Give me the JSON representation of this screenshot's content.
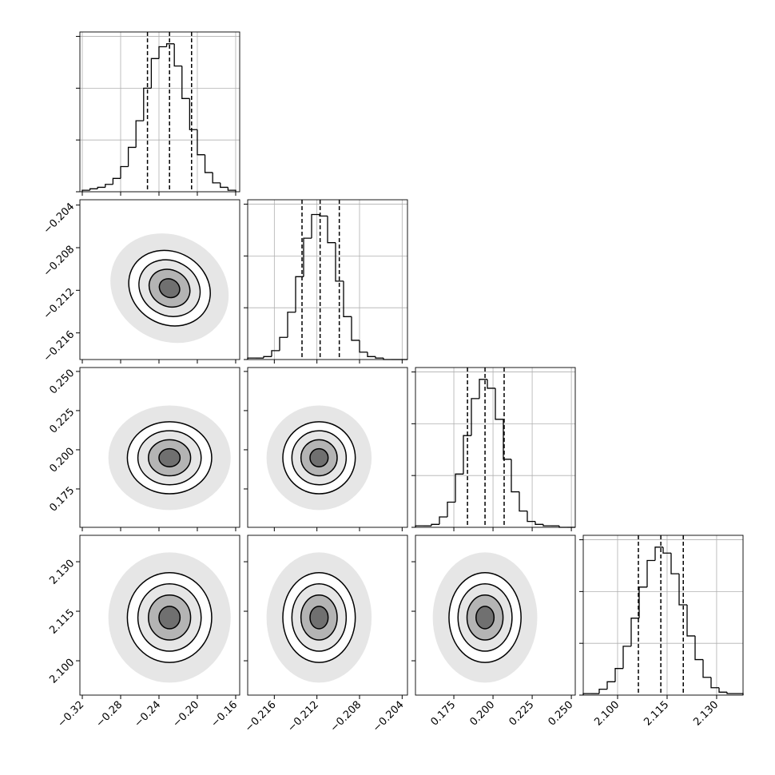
{
  "chart_data": {
    "type": "corner",
    "grid": true,
    "color": "#000000",
    "count_ylim": [
      0,
      108
    ],
    "count_yticks": [
      0,
      35,
      70,
      105
    ],
    "parameters": [
      {
        "xlim": [
          -0.3225,
          -0.1558
        ],
        "ticks": [
          {
            "value": -0.32,
            "label": "−0.32"
          },
          {
            "value": -0.28,
            "label": "−0.28"
          },
          {
            "value": -0.24,
            "label": "−0.24"
          },
          {
            "value": -0.2,
            "label": "−0.20"
          },
          {
            "value": -0.16,
            "label": "−0.16"
          }
        ],
        "bins": [
          -0.32,
          -0.312,
          -0.304,
          -0.296,
          -0.288,
          -0.28,
          -0.272,
          -0.264,
          -0.256,
          -0.248,
          -0.24,
          -0.232,
          -0.224,
          -0.216,
          -0.208,
          -0.2,
          -0.192,
          -0.184,
          -0.176,
          -0.168,
          -0.16
        ],
        "counts": [
          1,
          2,
          3,
          5,
          9,
          17,
          30,
          48,
          70,
          90,
          98,
          100,
          85,
          63,
          42,
          25,
          13,
          6,
          3,
          1
        ],
        "quantiles": [
          -0.252,
          -0.229,
          -0.206
        ]
      },
      {
        "xlim": [
          -0.2185,
          -0.2035
        ],
        "ticks": [
          {
            "value": -0.216,
            "label": "−0.216"
          },
          {
            "value": -0.212,
            "label": "−0.212"
          },
          {
            "value": -0.208,
            "label": "−0.208"
          },
          {
            "value": -0.204,
            "label": "−0.204"
          }
        ],
        "bins": [
          -0.2185,
          -0.21775,
          -0.217,
          -0.21625,
          -0.2155,
          -0.21475,
          -0.214,
          -0.21325,
          -0.2125,
          -0.21175,
          -0.211,
          -0.21025,
          -0.2095,
          -0.20875,
          -0.208,
          -0.20725,
          -0.2065,
          -0.20575,
          -0.205,
          -0.20425,
          -0.2035
        ],
        "counts": [
          1,
          1,
          2,
          6,
          15,
          32,
          56,
          82,
          98,
          97,
          79,
          53,
          29,
          13,
          5,
          2,
          1,
          0,
          0,
          0
        ],
        "quantiles": [
          -0.2134,
          -0.2117,
          -0.2099
        ]
      },
      {
        "xlim": [
          0.1505,
          0.2525
        ],
        "ticks": [
          0.175,
          {
            "value": 0.2,
            "label": "0.200"
          },
          0.225,
          {
            "value": 0.25,
            "label": "0.250"
          }
        ],
        "bins": [
          0.1505,
          0.1556,
          0.1607,
          0.1658,
          0.1709,
          0.176,
          0.1811,
          0.1862,
          0.1913,
          0.1964,
          0.2015,
          0.2066,
          0.2117,
          0.2168,
          0.2219,
          0.227,
          0.2321,
          0.2372,
          0.2423,
          0.2474,
          0.2525
        ],
        "counts": [
          1,
          1,
          2,
          7,
          17,
          36,
          62,
          87,
          100,
          94,
          73,
          46,
          24,
          11,
          4,
          2,
          1,
          1,
          0,
          0
        ],
        "quantiles": [
          0.1837,
          0.1949,
          0.2071
        ]
      },
      {
        "xlim": [
          2.0896,
          2.138
        ],
        "ticks": [
          {
            "value": 2.1,
            "label": "2.100"
          },
          2.115,
          {
            "value": 2.13,
            "label": "2.130"
          }
        ],
        "bins": [
          2.0896,
          2.09202,
          2.09444,
          2.09686,
          2.09928,
          2.1017,
          2.10412,
          2.10654,
          2.10896,
          2.11138,
          2.1138,
          2.11622,
          2.11864,
          2.12106,
          2.12348,
          2.1259,
          2.12832,
          2.13074,
          2.13316,
          2.13558,
          2.138
        ],
        "counts": [
          1,
          1,
          4,
          9,
          18,
          33,
          52,
          73,
          91,
          100,
          96,
          82,
          61,
          40,
          24,
          12,
          5,
          2,
          1,
          1
        ],
        "quantiles": [
          2.1063,
          2.1131,
          2.1199
        ]
      }
    ],
    "levels": [
      2,
      1.5,
      1,
      0.5
    ],
    "pairs": [
      {
        "mean": [
          -0.229,
          -0.2118
        ],
        "sigma": [
          0.022,
          0.0017
        ],
        "angle": 30
      },
      {
        "mean": [
          -0.229,
          0.1949
        ],
        "sigma": [
          0.022,
          0.0115
        ],
        "angle": 0
      },
      {
        "mean": [
          -0.2118,
          0.1949
        ],
        "sigma": [
          0.0017,
          0.0115
        ],
        "angle": 0
      },
      {
        "mean": [
          -0.229,
          2.1131
        ],
        "sigma": [
          0.022,
          0.0068
        ],
        "angle": 0
      },
      {
        "mean": [
          -0.2118,
          2.1131
        ],
        "sigma": [
          0.0017,
          0.0068
        ],
        "angle": 0
      },
      {
        "mean": [
          0.1949,
          2.1131
        ],
        "sigma": [
          0.0115,
          0.0068
        ],
        "angle": 0
      }
    ]
  }
}
